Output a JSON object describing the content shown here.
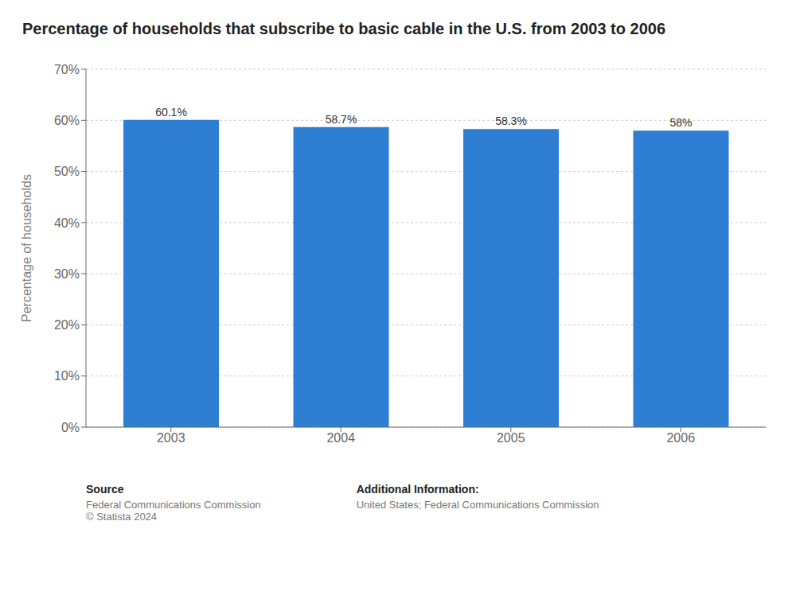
{
  "chart_data": {
    "type": "bar",
    "title": "Percentage of households that subscribe to basic cable in the U.S. from 2003 to 2006",
    "categories": [
      "2003",
      "2004",
      "2005",
      "2006"
    ],
    "values": [
      60.1,
      58.7,
      58.3,
      58.0
    ],
    "value_labels": [
      "60.1%",
      "58.7%",
      "58.3%",
      "58%"
    ],
    "data_labels": true,
    "color": "#2e7fd4",
    "ylabel": "Percentage of households",
    "ylim": [
      0,
      70
    ],
    "yticks": [
      {
        "value": 0,
        "label": "0%"
      },
      {
        "value": 10,
        "label": "10%"
      },
      {
        "value": 20,
        "label": "20%"
      },
      {
        "value": 30,
        "label": "30%"
      },
      {
        "value": 40,
        "label": "40%"
      },
      {
        "value": 50,
        "label": "50%"
      },
      {
        "value": 60,
        "label": "60%"
      },
      {
        "value": 70,
        "label": "70%"
      }
    ],
    "grid": true,
    "annotations": [
      "Source",
      "Federal Communications Commission\n© Statista 2024",
      "Additional Information:",
      "United States; Federal Communications Commission"
    ]
  }
}
